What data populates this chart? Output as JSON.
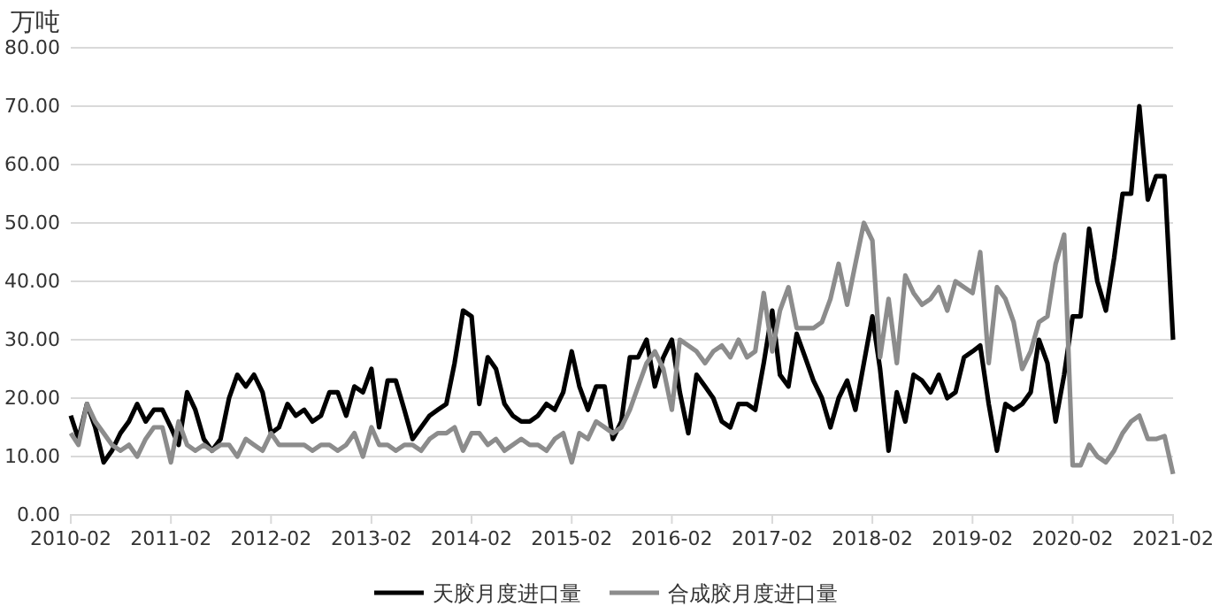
{
  "chart_data": {
    "type": "line",
    "ylabel": "万吨",
    "x": [
      "2010-02",
      "2010-03",
      "2010-04",
      "2010-05",
      "2010-06",
      "2010-07",
      "2010-08",
      "2010-09",
      "2010-10",
      "2010-11",
      "2010-12",
      "2011-01",
      "2011-02",
      "2011-03",
      "2011-04",
      "2011-05",
      "2011-06",
      "2011-07",
      "2011-08",
      "2011-09",
      "2011-10",
      "2011-11",
      "2011-12",
      "2012-01",
      "2012-02",
      "2012-03",
      "2012-04",
      "2012-05",
      "2012-06",
      "2012-07",
      "2012-08",
      "2012-09",
      "2012-10",
      "2012-11",
      "2012-12",
      "2013-01",
      "2013-02",
      "2013-03",
      "2013-04",
      "2013-05",
      "2013-06",
      "2013-07",
      "2013-08",
      "2013-09",
      "2013-10",
      "2013-11",
      "2013-12",
      "2014-01",
      "2014-02",
      "2014-03",
      "2014-04",
      "2014-05",
      "2014-06",
      "2014-07",
      "2014-08",
      "2014-09",
      "2014-10",
      "2014-11",
      "2014-12",
      "2015-01",
      "2015-02",
      "2015-03",
      "2015-04",
      "2015-05",
      "2015-06",
      "2015-07",
      "2015-08",
      "2015-09",
      "2015-10",
      "2015-11",
      "2015-12",
      "2016-01",
      "2016-02",
      "2016-03",
      "2016-04",
      "2016-05",
      "2016-06",
      "2016-07",
      "2016-08",
      "2016-09",
      "2016-10",
      "2016-11",
      "2016-12",
      "2017-01",
      "2017-02",
      "2017-03",
      "2017-04",
      "2017-05",
      "2017-06",
      "2017-07",
      "2017-08",
      "2017-09",
      "2017-10",
      "2017-11",
      "2017-12",
      "2018-01",
      "2018-02",
      "2018-03",
      "2018-04",
      "2018-05",
      "2018-06",
      "2018-07",
      "2018-08",
      "2018-09",
      "2018-10",
      "2018-11",
      "2018-12",
      "2019-01",
      "2019-02",
      "2019-03",
      "2019-04",
      "2019-05",
      "2019-06",
      "2019-07",
      "2019-08",
      "2019-09",
      "2019-10",
      "2019-11",
      "2019-12",
      "2020-01",
      "2020-02",
      "2020-03",
      "2020-04",
      "2020-05",
      "2020-06",
      "2020-07",
      "2020-08",
      "2020-09",
      "2020-10",
      "2020-11",
      "2020-12",
      "2021-01",
      "2021-02"
    ],
    "series": [
      {
        "name": "天胶月度进口量",
        "color": "#000000",
        "values": [
          17,
          13,
          19,
          15,
          9,
          11,
          14,
          16,
          19,
          16,
          18,
          18,
          15,
          12,
          21,
          18,
          13,
          11,
          13,
          20,
          24,
          22,
          24,
          21,
          14,
          15,
          19,
          17,
          18,
          16,
          17,
          21,
          21,
          17,
          22,
          21,
          25,
          15,
          23,
          23,
          18,
          13,
          15,
          17,
          18,
          19,
          26,
          35,
          34,
          19,
          27,
          25,
          19,
          17,
          16,
          16,
          17,
          19,
          18,
          21,
          28,
          22,
          18,
          22,
          22,
          13,
          16,
          27,
          27,
          30,
          22,
          27,
          30,
          21,
          14,
          24,
          22,
          20,
          16,
          15,
          19,
          19,
          18,
          26,
          35,
          24,
          22,
          31,
          27,
          23,
          20,
          15,
          20,
          23,
          18,
          26,
          34,
          25,
          11,
          21,
          16,
          24,
          23,
          21,
          24,
          20,
          21,
          27,
          28,
          29,
          19,
          11,
          19,
          18,
          19,
          21,
          30,
          26,
          16,
          24,
          34,
          34,
          49,
          40,
          35,
          44,
          55,
          55,
          70,
          54,
          58,
          58,
          30
        ]
      },
      {
        "name": "合成胶月度进口量",
        "color": "#8c8c8c",
        "values": [
          14,
          12,
          19,
          16,
          14,
          12,
          11,
          12,
          10,
          13,
          15,
          15,
          9,
          16,
          12,
          11,
          12,
          11,
          12,
          12,
          10,
          13,
          12,
          11,
          14,
          12,
          12,
          12,
          12,
          11,
          12,
          12,
          11,
          12,
          14,
          10,
          15,
          12,
          12,
          11,
          12,
          12,
          11,
          13,
          14,
          14,
          15,
          11,
          14,
          14,
          12,
          13,
          11,
          12,
          13,
          12,
          12,
          11,
          13,
          14,
          9,
          14,
          13,
          16,
          15,
          14,
          15,
          18,
          22,
          26,
          28,
          25,
          18,
          30,
          29,
          28,
          26,
          28,
          29,
          27,
          30,
          27,
          28,
          38,
          28,
          35,
          39,
          32,
          32,
          32,
          33,
          37,
          43,
          36,
          43,
          50,
          47,
          27,
          37,
          26,
          41,
          38,
          36,
          37,
          39,
          35,
          40,
          39,
          38,
          45,
          26,
          39,
          37,
          33,
          25,
          28,
          33,
          34,
          43,
          48,
          8.5,
          8.5,
          12,
          10,
          9,
          11,
          14,
          16,
          17,
          13,
          13,
          13.5,
          7
        ]
      }
    ],
    "xlim": [
      "2010-02",
      "2021-02"
    ],
    "xticks": [
      "2010-02",
      "2011-02",
      "2012-02",
      "2013-02",
      "2014-02",
      "2015-02",
      "2016-02",
      "2017-02",
      "2018-02",
      "2019-02",
      "2020-02",
      "2021-02"
    ],
    "ylim": [
      0,
      80
    ],
    "yticks": [
      {
        "value": 0,
        "label": "0.00"
      },
      {
        "value": 10,
        "label": "10.00"
      },
      {
        "value": 20,
        "label": "20.00"
      },
      {
        "value": 30,
        "label": "30.00"
      },
      {
        "value": 40,
        "label": "40.00"
      },
      {
        "value": 50,
        "label": "50.00"
      },
      {
        "value": 60,
        "label": "60.00"
      },
      {
        "value": 70,
        "label": "70.00"
      },
      {
        "value": 80,
        "label": "80.00"
      }
    ],
    "grid": "y",
    "legend": "bottom",
    "marker": "none",
    "line_style": "solid"
  }
}
